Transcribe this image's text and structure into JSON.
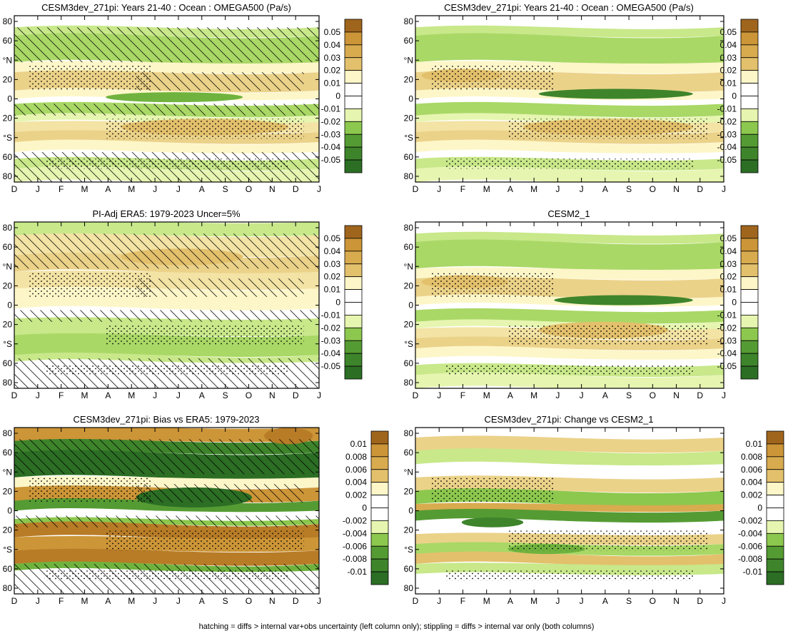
{
  "footer": "hatching = diffs > internal var+obs uncertainty (left column only); stippling = diffs > internal var only (both columns)",
  "colors": {
    "positive": [
      "#fdf6c8",
      "#f3e3a4",
      "#ebd289",
      "#e3c06c",
      "#d8ab4f",
      "#cc9537",
      "#b87c27",
      "#a0651d"
    ],
    "negative": [
      "#e6f5b0",
      "#c8e88a",
      "#a9d866",
      "#8cc84e",
      "#6fb33e",
      "#559b33",
      "#3e842b",
      "#2b6e24"
    ],
    "neutral": "#ffffff"
  },
  "chart_data": [
    {
      "type": "heatmap",
      "title": "CESM3dev_271pi: Years 21-40 : Ocean : OMEGA500 (Pa/s)",
      "x": [
        "D",
        "J",
        "F",
        "M",
        "A",
        "M",
        "J",
        "J",
        "A",
        "S",
        "O",
        "N",
        "D",
        "J"
      ],
      "y_ticks": [
        "80",
        "60",
        "°N",
        "20",
        "0",
        "20",
        "°S",
        "60",
        "80"
      ],
      "legend_levels": [
        "0.05",
        "0.04",
        "0.03",
        "0.02",
        "0.01",
        "0",
        "-0.01",
        "-0.02",
        "-0.03",
        "-0.04",
        "-0.05"
      ],
      "hatching": true,
      "stippling": true
    },
    {
      "type": "heatmap",
      "title": "CESM3dev_271pi: Years 21-40 : Ocean : OMEGA500 (Pa/s)",
      "x": [
        "D",
        "J",
        "F",
        "M",
        "A",
        "M",
        "J",
        "J",
        "A",
        "S",
        "O",
        "N",
        "D",
        "J"
      ],
      "y_ticks": [
        "80",
        "60",
        "°N",
        "20",
        "0",
        "20",
        "°S",
        "60",
        "80"
      ],
      "legend_levels": [
        "0.05",
        "0.04",
        "0.03",
        "0.02",
        "0.01",
        "0",
        "-0.01",
        "-0.02",
        "-0.03",
        "-0.04",
        "-0.05"
      ],
      "hatching": false,
      "stippling": true
    },
    {
      "type": "heatmap",
      "title": "PI-Adj ERA5: 1979-2023 Uncer=5%",
      "x": [
        "D",
        "J",
        "F",
        "M",
        "A",
        "M",
        "J",
        "J",
        "A",
        "S",
        "O",
        "N",
        "D",
        "J"
      ],
      "y_ticks": [
        "80",
        "60",
        "°N",
        "20",
        "0",
        "20",
        "°S",
        "60",
        "80"
      ],
      "legend_levels": [
        "0.05",
        "0.04",
        "0.03",
        "0.02",
        "0.01",
        "0",
        "-0.01",
        "-0.02",
        "-0.03",
        "-0.04",
        "-0.05"
      ],
      "hatching": true,
      "stippling": true
    },
    {
      "type": "heatmap",
      "title": "CESM2_1",
      "x": [
        "D",
        "J",
        "F",
        "M",
        "A",
        "M",
        "J",
        "J",
        "A",
        "S",
        "O",
        "N",
        "D",
        "J"
      ],
      "y_ticks": [
        "80",
        "60",
        "°N",
        "20",
        "0",
        "20",
        "°S",
        "60",
        "80"
      ],
      "legend_levels": [
        "0.05",
        "0.04",
        "0.03",
        "0.02",
        "0.01",
        "0",
        "-0.01",
        "-0.02",
        "-0.03",
        "-0.04",
        "-0.05"
      ],
      "hatching": false,
      "stippling": true
    },
    {
      "type": "heatmap",
      "title": "CESM3dev_271pi: Bias vs ERA5: 1979-2023",
      "x": [
        "D",
        "J",
        "F",
        "M",
        "A",
        "M",
        "J",
        "J",
        "A",
        "S",
        "O",
        "N",
        "D",
        "J"
      ],
      "y_ticks": [
        "80",
        "60",
        "°N",
        "20",
        "0",
        "20",
        "°S",
        "60",
        "80"
      ],
      "legend_levels": [
        "0.01",
        "0.008",
        "0.006",
        "0.004",
        "0.002",
        "0",
        "-0.002",
        "-0.004",
        "-0.006",
        "-0.008",
        "-0.01"
      ],
      "hatching": true,
      "stippling": true
    },
    {
      "type": "heatmap",
      "title": "CESM3dev_271pi: Change vs CESM2_1",
      "x": [
        "D",
        "J",
        "F",
        "M",
        "A",
        "M",
        "J",
        "J",
        "A",
        "S",
        "O",
        "N",
        "D",
        "J"
      ],
      "y_ticks": [
        "80",
        "60",
        "°N",
        "20",
        "0",
        "20",
        "°S",
        "60",
        "80"
      ],
      "legend_levels": [
        "0.01",
        "0.008",
        "0.006",
        "0.004",
        "0.002",
        "0",
        "-0.002",
        "-0.004",
        "-0.006",
        "-0.008",
        "-0.01"
      ],
      "hatching": false,
      "stippling": true
    }
  ]
}
